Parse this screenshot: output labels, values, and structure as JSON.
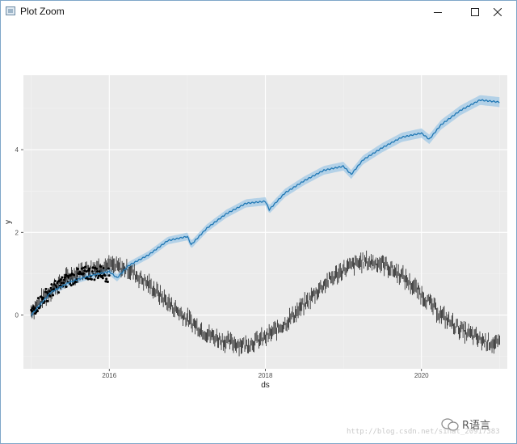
{
  "window": {
    "title": "Plot Zoom",
    "icon": "window-app-icon"
  },
  "controls": {
    "minimize": "minimize-icon",
    "maximize": "maximize-icon",
    "close": "close-icon"
  },
  "watermark": {
    "url": "http://blog.csdn.net/sinat_20917383",
    "brand": "R语言"
  },
  "chart_data": {
    "type": "line",
    "title": "",
    "xlabel": "ds",
    "ylabel": "y",
    "xlim": [
      2014.9,
      2021.1
    ],
    "ylim": [
      -1.3,
      5.8
    ],
    "x_ticks": [
      2016,
      2018,
      2020
    ],
    "x_tick_labels": [
      "2016",
      "2018",
      "2020"
    ],
    "y_ticks": [
      0,
      2,
      4
    ],
    "y_tick_labels": [
      "0",
      "2",
      "4"
    ],
    "grid": true,
    "background": "#ebebeb",
    "colors": {
      "forecast": "#1f77b4",
      "band": "#a9cde6",
      "points": "#000000"
    },
    "series": [
      {
        "kind": "observed-points",
        "x": [
          2015.0,
          2015.1,
          2015.2,
          2015.3,
          2015.4,
          2015.5,
          2015.6,
          2015.7,
          2015.8,
          2015.9,
          2016.0
        ],
        "y": [
          0.05,
          0.3,
          0.5,
          0.65,
          0.78,
          0.88,
          0.95,
          1.0,
          1.02,
          1.03,
          0.95
        ]
      },
      {
        "kind": "forecast-line",
        "x": [
          2015.0,
          2015.25,
          2015.5,
          2015.75,
          2016.0,
          2016.1,
          2016.25,
          2016.5,
          2016.75,
          2017.0,
          2017.05,
          2017.25,
          2017.5,
          2017.75,
          2018.0,
          2018.05,
          2018.25,
          2018.5,
          2018.75,
          2019.0,
          2019.1,
          2019.25,
          2019.5,
          2019.75,
          2020.0,
          2020.1,
          2020.25,
          2020.5,
          2020.75,
          2021.0
        ],
        "y": [
          0.0,
          0.55,
          0.8,
          0.95,
          1.05,
          0.9,
          1.2,
          1.45,
          1.8,
          1.9,
          1.7,
          2.1,
          2.45,
          2.7,
          2.75,
          2.55,
          2.95,
          3.25,
          3.5,
          3.6,
          3.4,
          3.75,
          4.05,
          4.3,
          4.4,
          4.25,
          4.6,
          4.95,
          5.2,
          5.15
        ]
      },
      {
        "kind": "actual-noisy",
        "x": [
          2015.0,
          2015.25,
          2015.5,
          2015.75,
          2016.0,
          2016.25,
          2016.5,
          2016.75,
          2017.0,
          2017.25,
          2017.5,
          2017.75,
          2018.0,
          2018.25,
          2018.5,
          2018.75,
          2019.0,
          2019.25,
          2019.5,
          2019.75,
          2020.0,
          2020.25,
          2020.5,
          2020.75,
          2021.0
        ],
        "y": [
          0.1,
          0.6,
          0.95,
          1.15,
          1.2,
          1.1,
          0.75,
          0.3,
          -0.1,
          -0.45,
          -0.65,
          -0.72,
          -0.55,
          -0.2,
          0.25,
          0.75,
          1.1,
          1.3,
          1.25,
          0.95,
          0.5,
          0.0,
          -0.35,
          -0.6,
          -0.72
        ]
      }
    ]
  }
}
